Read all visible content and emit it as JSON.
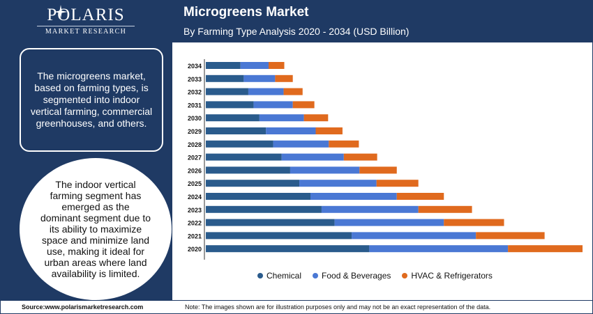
{
  "brand": {
    "name": "POLARIS",
    "sub": "MARKET RESEARCH"
  },
  "info_box": "The microgreens market, based on farming types, is segmented into indoor vertical farming, commercial greenhouses, and others.",
  "info_circle": "The indoor vertical farming segment has emerged as the dominant segment due to its ability to maximize space and minimize land use, making it ideal for urban areas where land availability is limited.",
  "footer": {
    "source": "Source:www.polarismarketresearch.com",
    "note": "Note: The images shown are for illustration purposes only and may not be an exact representation of the data."
  },
  "colors": {
    "chemical": "#2a5b8c",
    "food": "#4a78d4",
    "hvac": "#e06a1e",
    "navy": "#1f3a64"
  },
  "chart_data": {
    "type": "bar",
    "orientation": "horizontal",
    "stacked": true,
    "title": "Microgreens Market",
    "subtitle": "By Farming Type Analysis 2020 - 2034 (USD Billion)",
    "categories": [
      "2034",
      "2033",
      "2032",
      "2031",
      "2030",
      "2029",
      "2028",
      "2027",
      "2026",
      "2025",
      "2024",
      "2023",
      "2022",
      "2021",
      "2020"
    ],
    "series": [
      {
        "name": "Chemical",
        "values": [
          0.53,
          0.58,
          0.65,
          0.73,
          0.82,
          0.92,
          1.03,
          1.16,
          1.29,
          1.43,
          1.6,
          1.77,
          1.97,
          2.23,
          2.5
        ]
      },
      {
        "name": "Food & Beverages",
        "values": [
          0.43,
          0.48,
          0.54,
          0.6,
          0.68,
          0.76,
          0.85,
          0.95,
          1.06,
          1.18,
          1.32,
          1.48,
          1.67,
          1.9,
          2.12
        ]
      },
      {
        "name": "HVAC & Refrigerators",
        "values": [
          0.24,
          0.27,
          0.29,
          0.33,
          0.37,
          0.41,
          0.46,
          0.51,
          0.57,
          0.64,
          0.72,
          0.82,
          0.92,
          1.05,
          1.14
        ]
      }
    ],
    "legend_position": "bottom",
    "grid": false
  }
}
